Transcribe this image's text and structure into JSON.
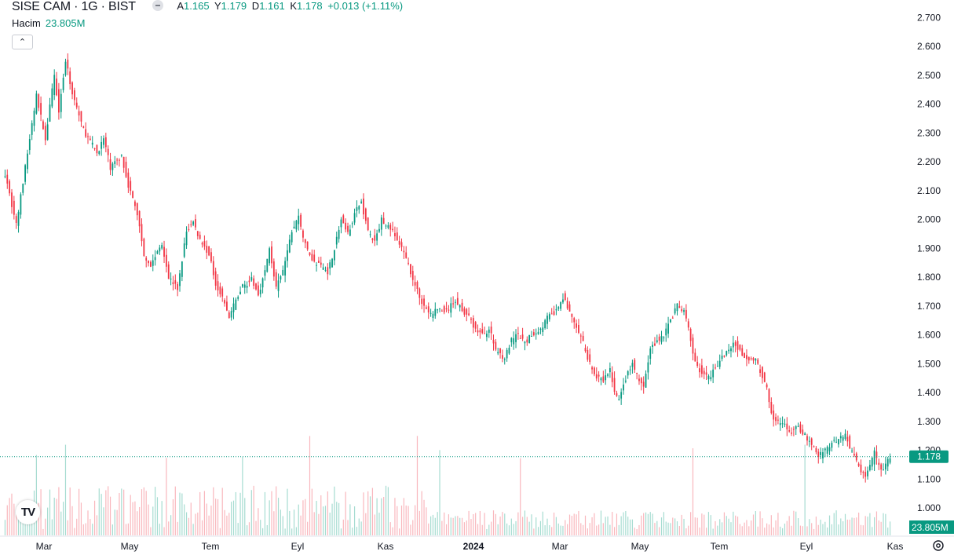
{
  "legend": {
    "symbol": "SISE CAM · 1G · BIST",
    "open_label": "A",
    "open": "1.165",
    "high_label": "Y",
    "high": "1.179",
    "low_label": "D",
    "low": "1.161",
    "close_label": "K",
    "close": "1.178",
    "change": "+0.013 (+1.11%)"
  },
  "volume_legend": {
    "label": "Hacim",
    "value": "23.805M"
  },
  "colors": {
    "up": "#089981",
    "down": "#f23645",
    "up_volume": "#a6dcd1",
    "down_volume": "#f9b7bd",
    "text": "#131722"
  },
  "chart_data": {
    "type": "candlestick",
    "symbol": "SISE CAM",
    "interval": "1G",
    "exchange": "BIST",
    "price_axis": {
      "ticks": [
        "2.700",
        "2.600",
        "2.500",
        "2.400",
        "2.300",
        "2.200",
        "2.100",
        "2.000",
        "1.900",
        "1.800",
        "1.700",
        "1.600",
        "1.500",
        "1.400",
        "1.300",
        "1.200",
        "1.100",
        "1.000"
      ],
      "range": [
        0.965,
        2.72
      ]
    },
    "time_axis": {
      "ticks": [
        "Mar",
        "May",
        "Tem",
        "Eyl",
        "Kas",
        "2024",
        "Mar",
        "May",
        "Tem",
        "Eyl",
        "Kas"
      ]
    },
    "last_price": "1.178",
    "last_volume": "23.805M",
    "close_path": [
      [
        0,
        2.16
      ],
      [
        5,
        1.98
      ],
      [
        9,
        2.18
      ],
      [
        14,
        2.43
      ],
      [
        18,
        2.28
      ],
      [
        22,
        2.5
      ],
      [
        24,
        2.38
      ],
      [
        27,
        2.55
      ],
      [
        30,
        2.44
      ],
      [
        35,
        2.31
      ],
      [
        41,
        2.23
      ],
      [
        44,
        2.28
      ],
      [
        47,
        2.18
      ],
      [
        52,
        2.22
      ],
      [
        55,
        2.12
      ],
      [
        59,
        2.02
      ],
      [
        62,
        1.88
      ],
      [
        65,
        1.84
      ],
      [
        70,
        1.92
      ],
      [
        73,
        1.8
      ],
      [
        77,
        1.76
      ],
      [
        81,
        1.96
      ],
      [
        84,
        1.99
      ],
      [
        87,
        1.93
      ],
      [
        91,
        1.88
      ],
      [
        94,
        1.78
      ],
      [
        97,
        1.73
      ],
      [
        100,
        1.66
      ],
      [
        103,
        1.72
      ],
      [
        106,
        1.77
      ],
      [
        110,
        1.79
      ],
      [
        113,
        1.74
      ],
      [
        116,
        1.82
      ],
      [
        118,
        1.9
      ],
      [
        121,
        1.76
      ],
      [
        124,
        1.82
      ],
      [
        128,
        1.96
      ],
      [
        131,
        2.01
      ],
      [
        134,
        1.91
      ],
      [
        138,
        1.85
      ],
      [
        141,
        1.84
      ],
      [
        144,
        1.82
      ],
      [
        147,
        1.9
      ],
      [
        150,
        2.0
      ],
      [
        153,
        1.95
      ],
      [
        156,
        2.02
      ],
      [
        159,
        2.06
      ],
      [
        162,
        1.96
      ],
      [
        165,
        1.92
      ],
      [
        168,
        2.0
      ],
      [
        172,
        1.97
      ],
      [
        175,
        1.93
      ],
      [
        178,
        1.88
      ],
      [
        181,
        1.82
      ],
      [
        184,
        1.75
      ],
      [
        187,
        1.7
      ],
      [
        190,
        1.67
      ],
      [
        193,
        1.69
      ],
      [
        197,
        1.68
      ],
      [
        201,
        1.72
      ],
      [
        204,
        1.69
      ],
      [
        207,
        1.66
      ],
      [
        210,
        1.62
      ],
      [
        213,
        1.6
      ],
      [
        216,
        1.62
      ],
      [
        219,
        1.55
      ],
      [
        223,
        1.52
      ],
      [
        226,
        1.58
      ],
      [
        229,
        1.6
      ],
      [
        232,
        1.57
      ],
      [
        235,
        1.6
      ],
      [
        239,
        1.62
      ],
      [
        242,
        1.66
      ],
      [
        246,
        1.68
      ],
      [
        249,
        1.73
      ],
      [
        252,
        1.68
      ],
      [
        255,
        1.62
      ],
      [
        258,
        1.57
      ],
      [
        261,
        1.5
      ],
      [
        264,
        1.45
      ],
      [
        267,
        1.44
      ],
      [
        270,
        1.48
      ],
      [
        272,
        1.4
      ],
      [
        274,
        1.37
      ],
      [
        277,
        1.45
      ],
      [
        280,
        1.5
      ],
      [
        283,
        1.44
      ],
      [
        285,
        1.42
      ],
      [
        288,
        1.55
      ],
      [
        291,
        1.58
      ],
      [
        294,
        1.6
      ],
      [
        297,
        1.65
      ],
      [
        300,
        1.7
      ],
      [
        303,
        1.68
      ],
      [
        305,
        1.62
      ],
      [
        308,
        1.5
      ],
      [
        311,
        1.47
      ],
      [
        314,
        1.45
      ],
      [
        317,
        1.49
      ],
      [
        320,
        1.52
      ],
      [
        323,
        1.55
      ],
      [
        326,
        1.57
      ],
      [
        329,
        1.53
      ],
      [
        332,
        1.52
      ],
      [
        335,
        1.51
      ],
      [
        338,
        1.46
      ],
      [
        340,
        1.42
      ],
      [
        341,
        1.36
      ],
      [
        343,
        1.31
      ],
      [
        346,
        1.29
      ],
      [
        349,
        1.28
      ],
      [
        351,
        1.26
      ],
      [
        354,
        1.28
      ],
      [
        357,
        1.25
      ],
      [
        360,
        1.22
      ],
      [
        363,
        1.18
      ],
      [
        366,
        1.2
      ],
      [
        369,
        1.22
      ],
      [
        372,
        1.24
      ],
      [
        375,
        1.26
      ],
      [
        377,
        1.21
      ],
      [
        380,
        1.16
      ],
      [
        382,
        1.13
      ],
      [
        384,
        1.11
      ],
      [
        386,
        1.14
      ],
      [
        388,
        1.19
      ],
      [
        390,
        1.15
      ],
      [
        392,
        1.13
      ],
      [
        394,
        1.16
      ],
      [
        395,
        1.178
      ]
    ]
  }
}
